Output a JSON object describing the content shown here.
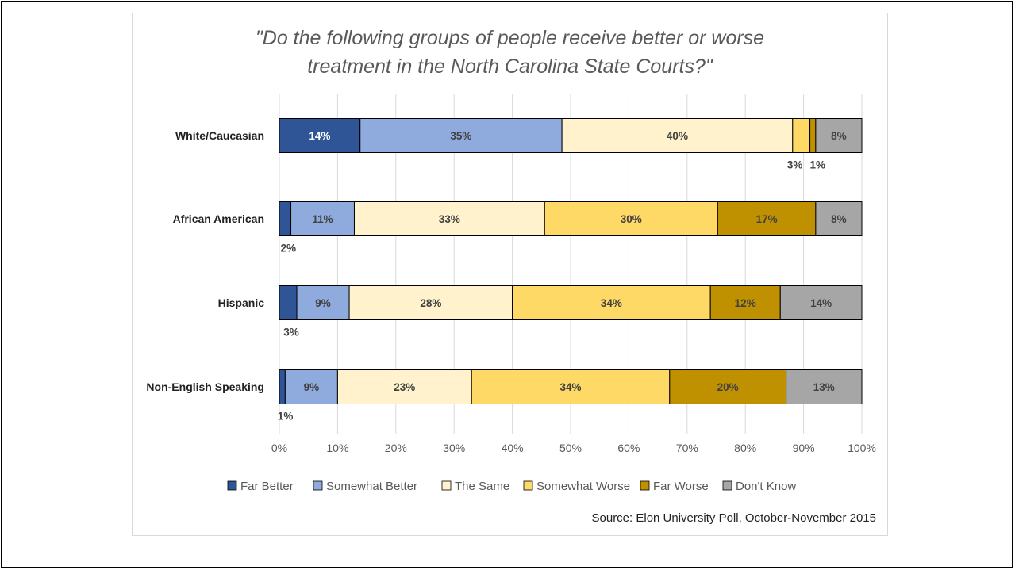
{
  "title_line1": "\"Do the following groups of people receive better or worse",
  "title_line2": "treatment in the North Carolina State Courts?\"",
  "source": "Source:  Elon University Poll, October-November 2015",
  "chart_data": {
    "type": "bar",
    "orientation": "horizontal",
    "stacked": "percent",
    "categories": [
      "White/Caucasian",
      "African American",
      "Hispanic",
      "Non-English Speaking"
    ],
    "series": [
      {
        "name": "Far Better",
        "color": "#2f5597",
        "values": [
          14,
          2,
          3,
          1
        ],
        "labels": [
          "14%",
          "2%",
          "3%",
          "1%"
        ]
      },
      {
        "name": "Somewhat Better",
        "color": "#8faadc",
        "values": [
          35,
          11,
          9,
          9
        ],
        "labels": [
          "35%",
          "11%",
          "9%",
          "9%"
        ]
      },
      {
        "name": "The Same",
        "color": "#fff2cc",
        "values": [
          40,
          33,
          28,
          23
        ],
        "labels": [
          "40%",
          "33%",
          "28%",
          "23%"
        ]
      },
      {
        "name": "Somewhat Worse",
        "color": "#ffd966",
        "values": [
          3,
          30,
          34,
          34
        ],
        "labels": [
          "3%",
          "30%",
          "34%",
          "34%"
        ]
      },
      {
        "name": "Far Worse",
        "color": "#bf9000",
        "values": [
          1,
          17,
          12,
          20
        ],
        "labels": [
          "1%",
          "17%",
          "12%",
          "20%"
        ]
      },
      {
        "name": "Don't Know",
        "color": "#a6a6a6",
        "values": [
          8,
          8,
          14,
          13
        ],
        "labels": [
          "8%",
          "8%",
          "14%",
          "13%"
        ]
      }
    ],
    "xlim": [
      0,
      100
    ],
    "x_ticks": [
      "0%",
      "10%",
      "20%",
      "30%",
      "40%",
      "50%",
      "60%",
      "70%",
      "80%",
      "90%",
      "100%"
    ],
    "grid": true,
    "legend_position": "bottom"
  }
}
